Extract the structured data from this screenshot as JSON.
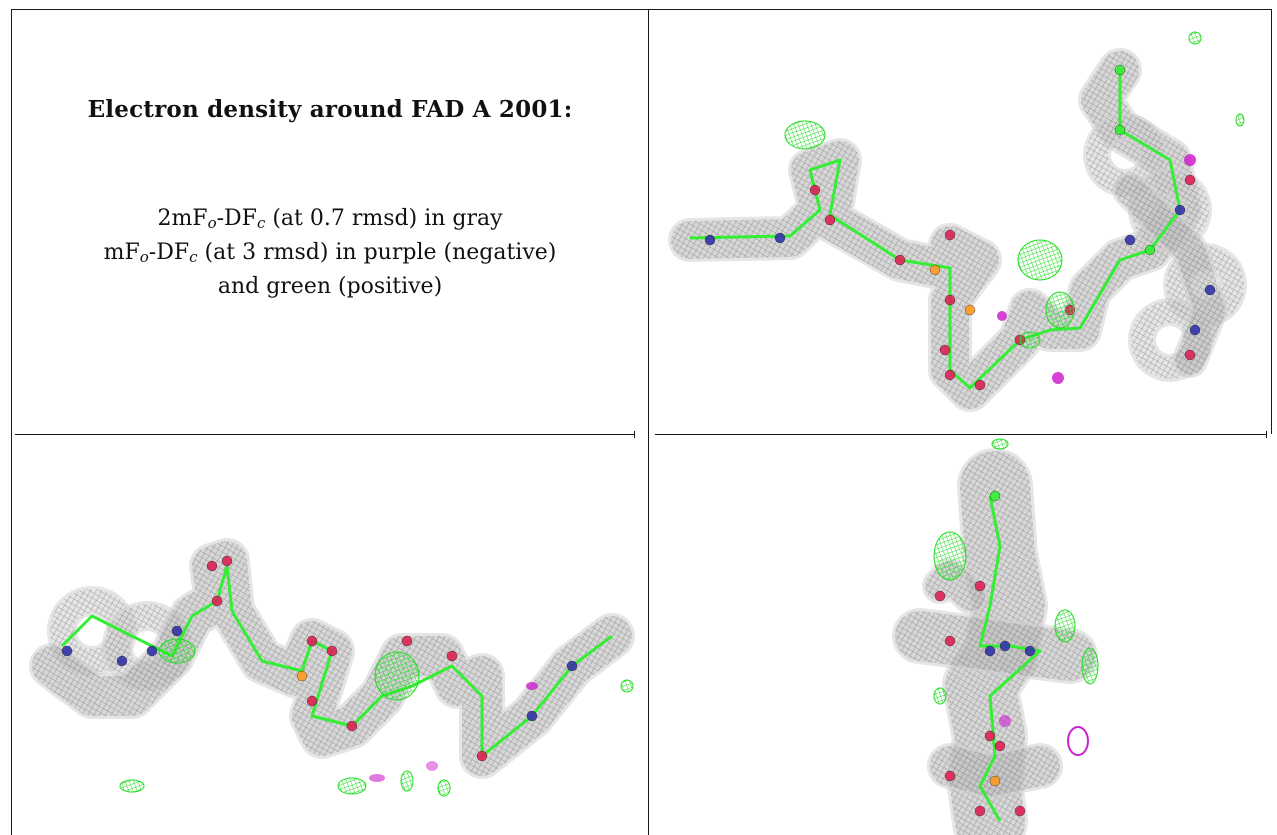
{
  "caption": {
    "title": "Electron density around FAD A 2001:",
    "line1_prefix": "2mF",
    "line1_sub1": "o",
    "line1_mid": "-DF",
    "line1_sub2": "c",
    "line1_suffix": " (at 0.7 rmsd) in gray",
    "line2_prefix": "mF",
    "line2_sub1": "o",
    "line2_mid": "-DF",
    "line2_sub2": "c",
    "line2_suffix": " (at 3 rmsd) in purple (negative)",
    "line3": "and green (positive)"
  },
  "colors": {
    "density_gray": "#8c8c8c",
    "carbon_green": "#33ee33",
    "nitrogen_blue": "#3333aa",
    "oxygen_red": "#dd2255",
    "phosphorus_orange": "#ff9922",
    "negative_purple": "#cc22cc",
    "positive_green": "#22dd22"
  },
  "panels": [
    {
      "id": "top-right",
      "view": "FAD view 1"
    },
    {
      "id": "bottom-left",
      "view": "FAD view 2"
    },
    {
      "id": "bottom-right",
      "view": "FAD view 3"
    }
  ]
}
